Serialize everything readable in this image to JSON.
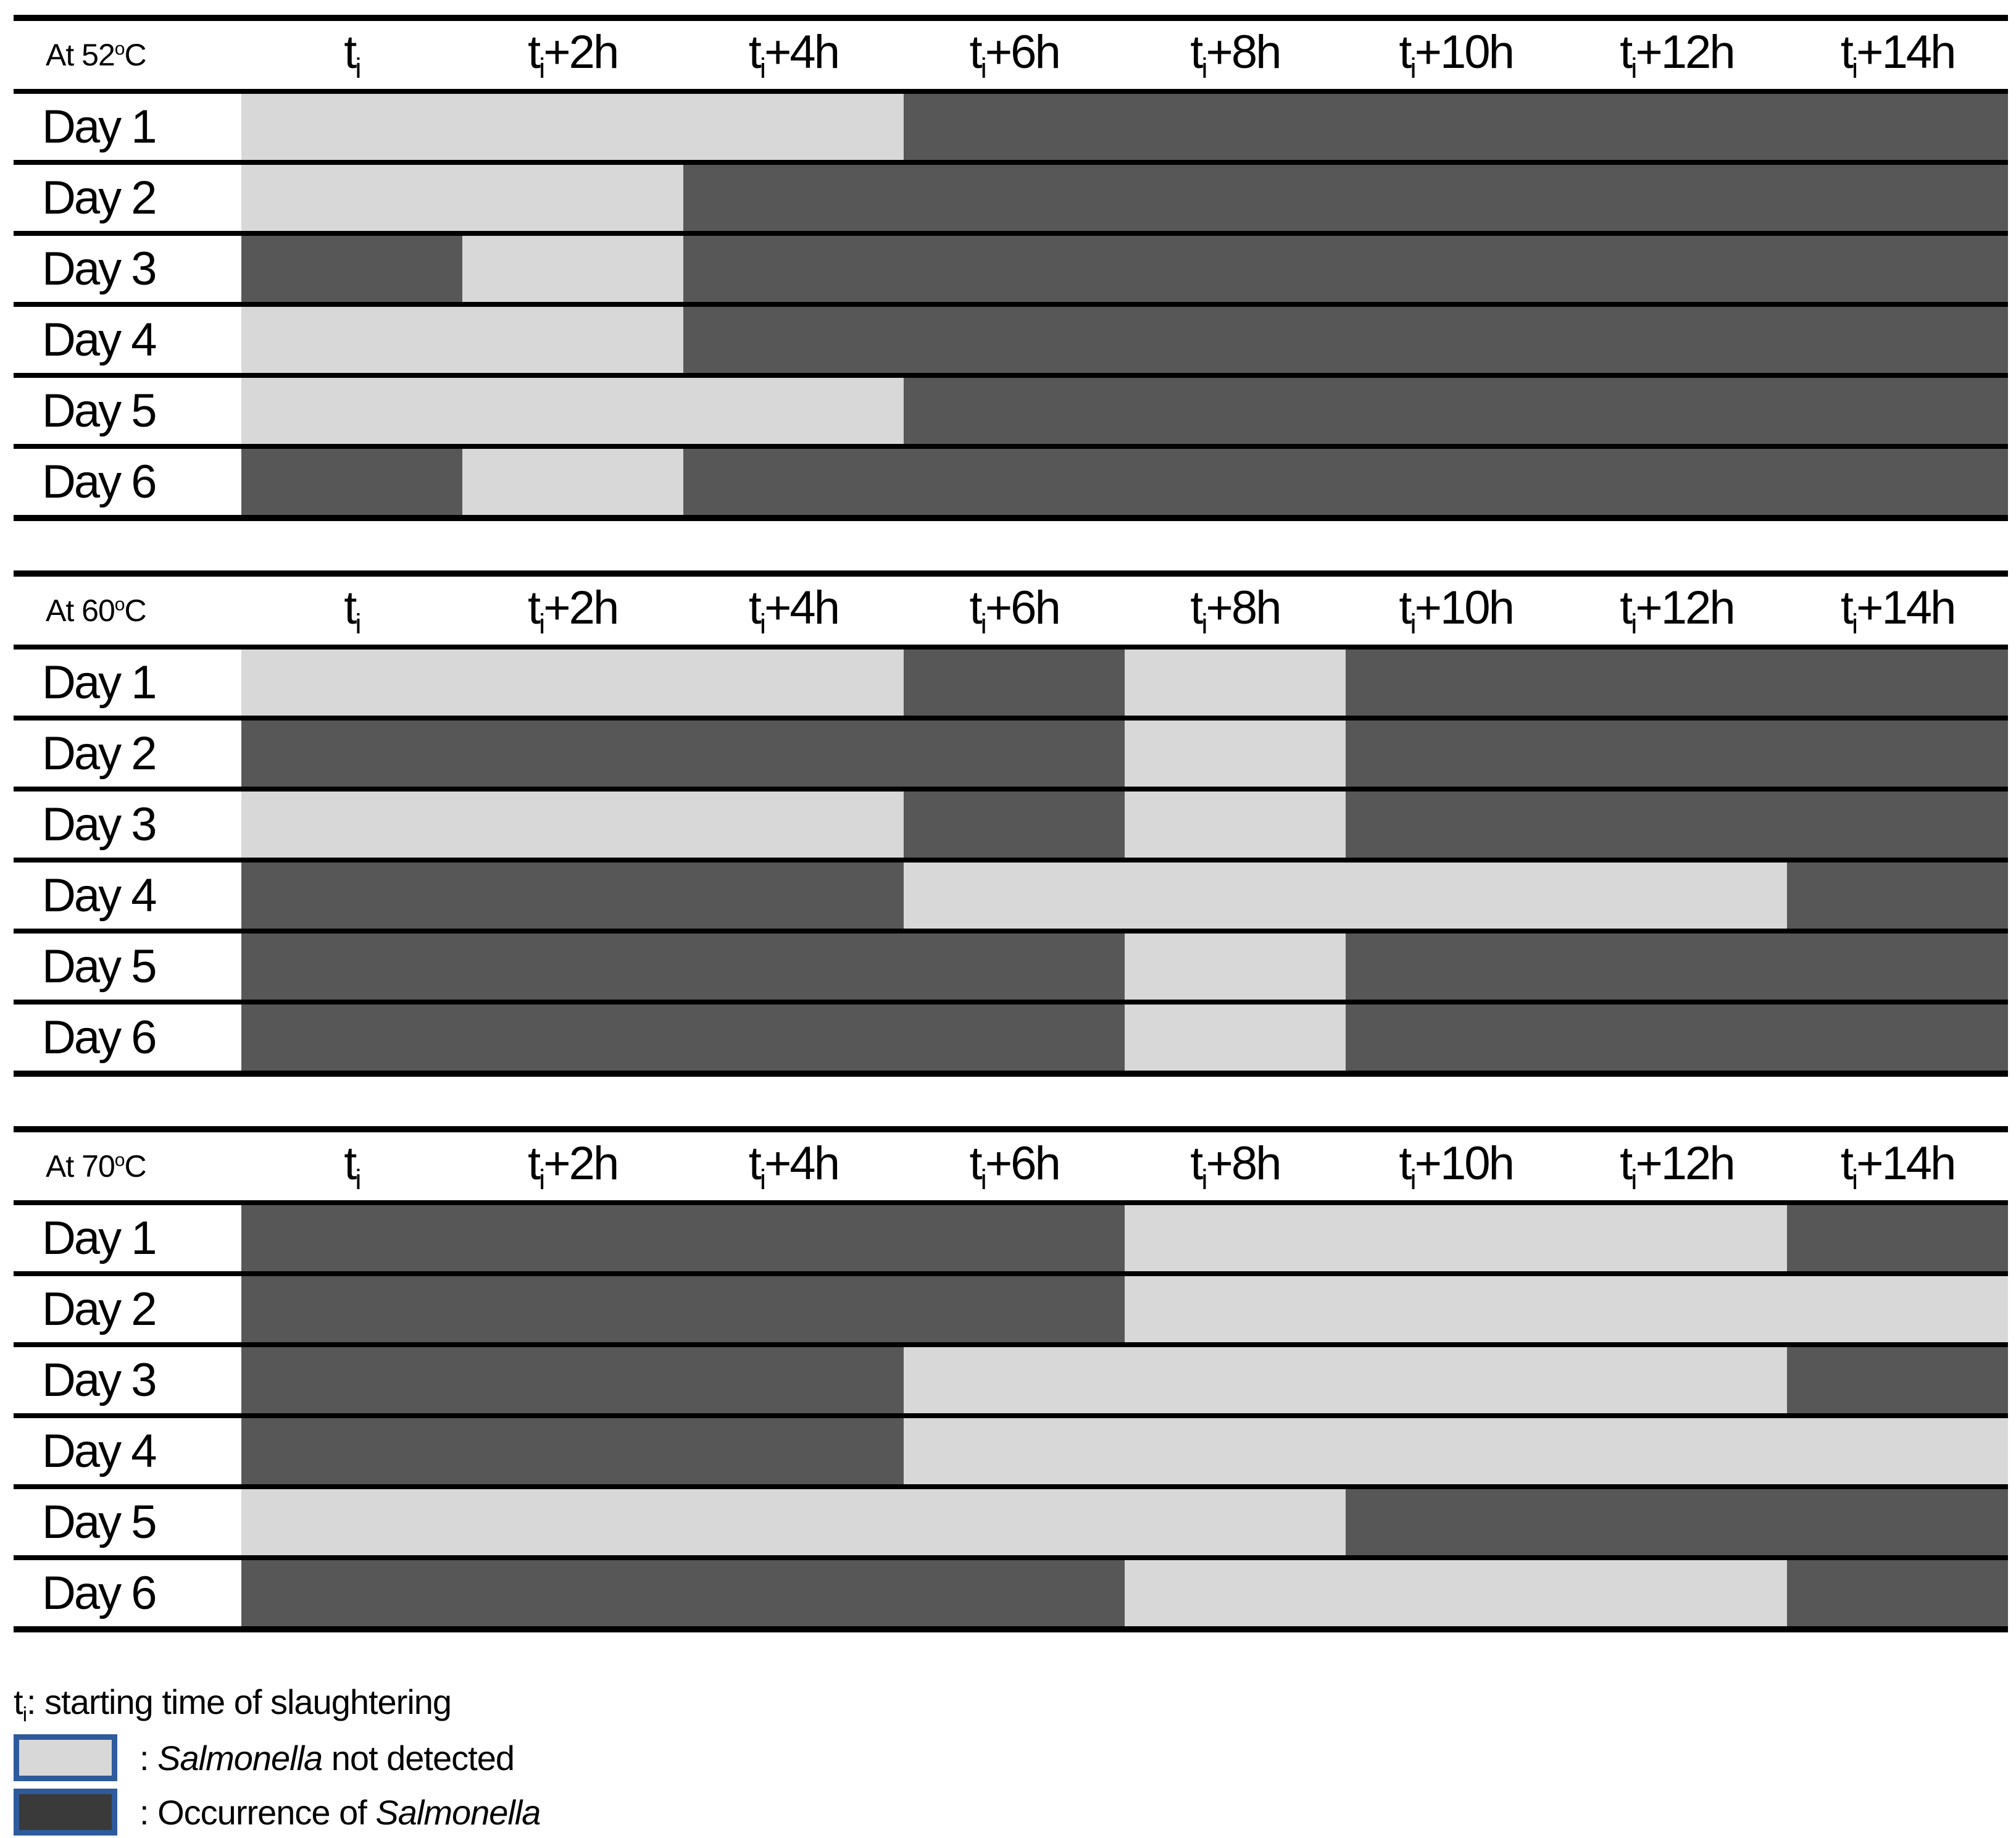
{
  "time_labels": [
    {
      "main": "t",
      "sub": "i",
      "rest": ""
    },
    {
      "main": "t",
      "sub": "i",
      "rest": "+2h"
    },
    {
      "main": "t",
      "sub": "i",
      "rest": "+4h"
    },
    {
      "main": "t",
      "sub": "i",
      "rest": "+6h"
    },
    {
      "main": "t",
      "sub": "i",
      "rest": "+8h"
    },
    {
      "main": "t",
      "sub": "i",
      "rest": "+10h"
    },
    {
      "main": "t",
      "sub": "i",
      "rest": "+12h"
    },
    {
      "main": "t",
      "sub": "i",
      "rest": "+14h"
    }
  ],
  "chart_data": [
    {
      "type": "heatmap",
      "title": "At 52°C",
      "title_parts": {
        "prefix": "At 52",
        "sup": "o",
        "suffix": "C"
      },
      "x_labels": [
        "ti",
        "ti+2h",
        "ti+4h",
        "ti+6h",
        "ti+8h",
        "ti+10h",
        "ti+12h",
        "ti+14h"
      ],
      "rows": [
        "Day 1",
        "Day 2",
        "Day 3",
        "Day 4",
        "Day 5",
        "Day 6"
      ],
      "values": [
        [
          "not_detected",
          "not_detected",
          "not_detected",
          "occurrence",
          "occurrence",
          "occurrence",
          "occurrence",
          "occurrence"
        ],
        [
          "not_detected",
          "not_detected",
          "occurrence",
          "occurrence",
          "occurrence",
          "occurrence",
          "occurrence",
          "occurrence"
        ],
        [
          "occurrence",
          "not_detected",
          "occurrence",
          "occurrence",
          "occurrence",
          "occurrence",
          "occurrence",
          "occurrence"
        ],
        [
          "not_detected",
          "not_detected",
          "occurrence",
          "occurrence",
          "occurrence",
          "occurrence",
          "occurrence",
          "occurrence"
        ],
        [
          "not_detected",
          "not_detected",
          "not_detected",
          "occurrence",
          "occurrence",
          "occurrence",
          "occurrence",
          "occurrence"
        ],
        [
          "occurrence",
          "not_detected",
          "occurrence",
          "occurrence",
          "occurrence",
          "occurrence",
          "occurrence",
          "occurrence"
        ]
      ]
    },
    {
      "type": "heatmap",
      "title": "At 60°C",
      "title_parts": {
        "prefix": "At 60",
        "sup": "o",
        "suffix": "C"
      },
      "x_labels": [
        "ti",
        "ti+2h",
        "ti+4h",
        "ti+6h",
        "ti+8h",
        "ti+10h",
        "ti+12h",
        "ti+14h"
      ],
      "rows": [
        "Day 1",
        "Day 2",
        "Day 3",
        "Day 4",
        "Day 5",
        "Day 6"
      ],
      "values": [
        [
          "not_detected",
          "not_detected",
          "not_detected",
          "occurrence",
          "not_detected",
          "occurrence",
          "occurrence",
          "occurrence"
        ],
        [
          "occurrence",
          "occurrence",
          "occurrence",
          "occurrence",
          "not_detected",
          "occurrence",
          "occurrence",
          "occurrence"
        ],
        [
          "not_detected",
          "not_detected",
          "not_detected",
          "occurrence",
          "not_detected",
          "occurrence",
          "occurrence",
          "occurrence"
        ],
        [
          "occurrence",
          "occurrence",
          "occurrence",
          "not_detected",
          "not_detected",
          "not_detected",
          "not_detected",
          "occurrence"
        ],
        [
          "occurrence",
          "occurrence",
          "occurrence",
          "occurrence",
          "not_detected",
          "occurrence",
          "occurrence",
          "occurrence"
        ],
        [
          "occurrence",
          "occurrence",
          "occurrence",
          "occurrence",
          "not_detected",
          "occurrence",
          "occurrence",
          "occurrence"
        ]
      ]
    },
    {
      "type": "heatmap",
      "title": "At 70°C",
      "title_parts": {
        "prefix": "At 70",
        "sup": "o",
        "suffix": "C"
      },
      "x_labels": [
        "ti",
        "ti+2h",
        "ti+4h",
        "ti+6h",
        "ti+8h",
        "ti+10h",
        "ti+12h",
        "ti+14h"
      ],
      "rows": [
        "Day 1",
        "Day 2",
        "Day 3",
        "Day 4",
        "Day 5",
        "Day 6"
      ],
      "values": [
        [
          "occurrence",
          "occurrence",
          "occurrence",
          "occurrence",
          "not_detected",
          "not_detected",
          "not_detected",
          "occurrence"
        ],
        [
          "occurrence",
          "occurrence",
          "occurrence",
          "occurrence",
          "not_detected",
          "not_detected",
          "not_detected",
          "not_detected"
        ],
        [
          "occurrence",
          "occurrence",
          "occurrence",
          "not_detected",
          "not_detected",
          "not_detected",
          "not_detected",
          "occurrence"
        ],
        [
          "occurrence",
          "occurrence",
          "occurrence",
          "not_detected",
          "not_detected",
          "not_detected",
          "not_detected",
          "not_detected"
        ],
        [
          "not_detected",
          "not_detected",
          "not_detected",
          "not_detected",
          "not_detected",
          "occurrence",
          "occurrence",
          "occurrence"
        ],
        [
          "occurrence",
          "occurrence",
          "occurrence",
          "occurrence",
          "not_detected",
          "not_detected",
          "not_detected",
          "occurrence"
        ]
      ]
    }
  ],
  "value_legend": {
    "not_detected": "Salmonella not detected",
    "occurrence": "Occurrence of Salmonella"
  },
  "legend": {
    "ti_note": {
      "main": "t",
      "sub": "i",
      "rest": ": starting time of slaughtering"
    },
    "not_detected": {
      "prefix": ": ",
      "italic": "Salmonella",
      "suffix": " not detected"
    },
    "occurrence": {
      "prefix": ": Occurrence of ",
      "italic": "Salmonella",
      "suffix": ""
    }
  },
  "colors": {
    "not_detected": "#D8D8D8",
    "occurrence": "#575757",
    "legend_not_detected_fill": "#D8D8D8",
    "legend_occurrence_fill": "#3A3A3A",
    "legend_border": "#2E5B9C",
    "line": "#000000"
  }
}
